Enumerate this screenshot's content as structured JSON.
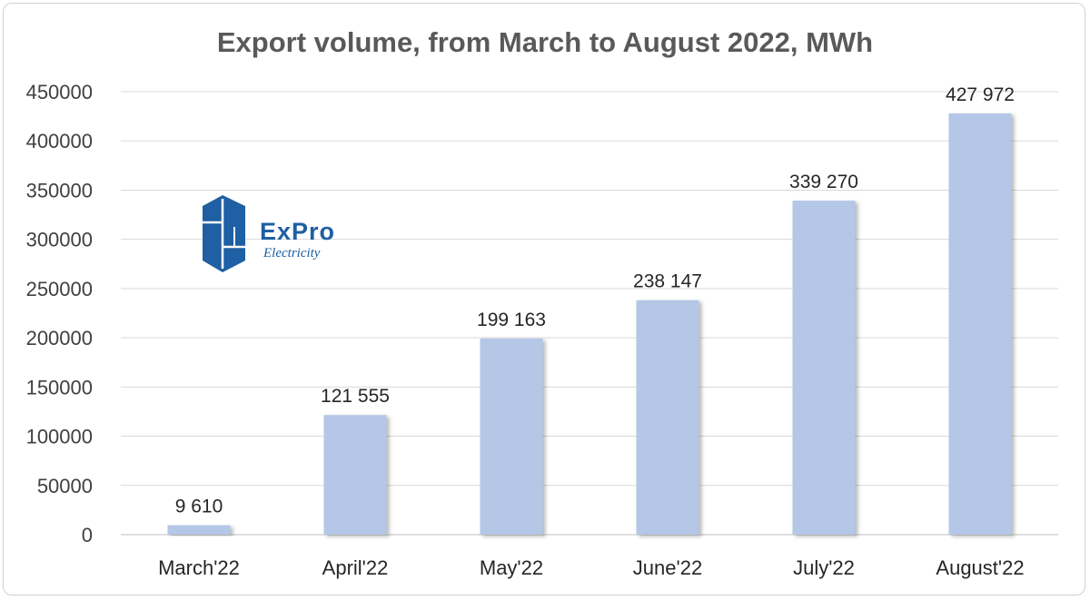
{
  "chart_data": {
    "type": "bar",
    "title": "Export volume, from March to August 2022, MWh",
    "categories": [
      "March'22",
      "April'22",
      "May'22",
      "June'22",
      "July'22",
      "August'22"
    ],
    "values": [
      9610,
      121555,
      199163,
      238147,
      339270,
      427972
    ],
    "data_labels": [
      "9 610",
      "121 555",
      "199 163",
      "238 147",
      "339 270",
      "427 972"
    ],
    "y_ticks": [
      "0",
      "50000",
      "100000",
      "150000",
      "200000",
      "250000",
      "300000",
      "350000",
      "400000",
      "450000"
    ],
    "ylim": [
      0,
      450000
    ],
    "grid": true,
    "legend": "none",
    "bar_color": "#b4c7e7"
  },
  "logo": {
    "main": "ExPro",
    "sub": "Electricity",
    "color": "#1f5fa3"
  }
}
